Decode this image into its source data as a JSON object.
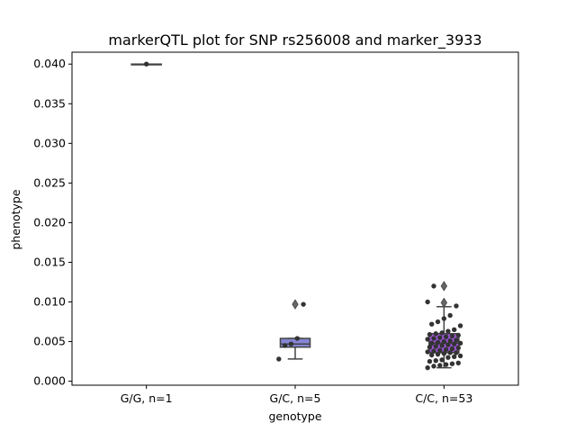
{
  "chart_data": {
    "type": "box",
    "title": "markerQTL plot for SNP rs256008 and marker_3933",
    "xlabel": "genotype",
    "ylabel": "phenotype",
    "ylim": [
      -0.0005,
      0.0415
    ],
    "yticks": [
      0.0,
      0.005,
      0.01,
      0.015,
      0.02,
      0.025,
      0.03,
      0.035,
      0.04
    ],
    "ytick_labels": [
      "0.000",
      "0.005",
      "0.010",
      "0.015",
      "0.020",
      "0.025",
      "0.030",
      "0.035",
      "0.040"
    ],
    "categories": [
      "G/G, n=1",
      "G/C, n=5",
      "C/C, n=53"
    ],
    "boxes": [
      {
        "category": "G/G, n=1",
        "q1": 0.04,
        "median": 0.04,
        "q3": 0.04,
        "whisker_low": 0.04,
        "whisker_high": 0.04,
        "outliers": [],
        "color": "#6a6ad8"
      },
      {
        "category": "G/C, n=5",
        "q1": 0.0043,
        "median": 0.0047,
        "q3": 0.0054,
        "whisker_low": 0.0028,
        "whisker_high": 0.0054,
        "outliers": [
          0.0097
        ],
        "color": "#8585d6"
      },
      {
        "category": "C/C, n=53",
        "q1": 0.0036,
        "median": 0.0048,
        "q3": 0.006,
        "whisker_low": 0.0017,
        "whisker_high": 0.0094,
        "outliers": [
          0.0099,
          0.012
        ],
        "color": "#a056e0"
      }
    ],
    "points": [
      {
        "category": "G/G, n=1",
        "values": [
          0.04
        ]
      },
      {
        "category": "G/C, n=5",
        "values": [
          0.0028,
          0.0045,
          0.0047,
          0.0054,
          0.0097
        ]
      },
      {
        "category": "C/C, n=53",
        "values": [
          0.0017,
          0.0019,
          0.002,
          0.0021,
          0.0022,
          0.0023,
          0.0025,
          0.0026,
          0.0027,
          0.003,
          0.0031,
          0.0032,
          0.0033,
          0.0034,
          0.0035,
          0.0036,
          0.0036,
          0.0037,
          0.0038,
          0.0039,
          0.004,
          0.0041,
          0.0042,
          0.0043,
          0.0044,
          0.0045,
          0.0046,
          0.0047,
          0.0048,
          0.0048,
          0.0049,
          0.005,
          0.0051,
          0.0052,
          0.0053,
          0.0054,
          0.0055,
          0.0056,
          0.0057,
          0.0058,
          0.0059,
          0.006,
          0.0061,
          0.0063,
          0.0065,
          0.007,
          0.0072,
          0.0075,
          0.0079,
          0.0083,
          0.0095,
          0.01,
          0.012
        ]
      }
    ],
    "point_color": "#333333",
    "grid": false,
    "legend": "none"
  }
}
